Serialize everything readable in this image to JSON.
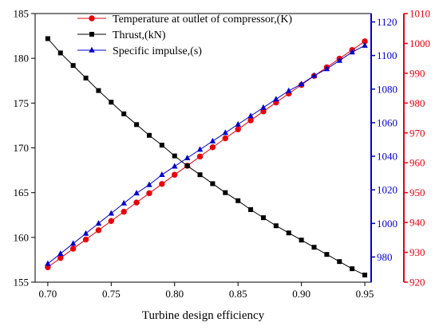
{
  "chart_data": {
    "type": "line",
    "title": "",
    "xlabel": "Turbine design efficiency",
    "xlim": [
      0.69,
      0.955
    ],
    "x_ticks": [
      "0.70",
      "0.75",
      "0.80",
      "0.85",
      "0.90",
      "0.95"
    ],
    "x_tick_values": [
      0.7,
      0.75,
      0.8,
      0.85,
      0.9,
      0.95
    ],
    "axes": [
      {
        "key": "left",
        "color": "#000000",
        "ylim": [
          155,
          185
        ],
        "ticks": [
          "155",
          "160",
          "165",
          "170",
          "175",
          "180",
          "185"
        ],
        "tick_values": [
          155,
          160,
          165,
          170,
          175,
          180,
          185
        ]
      },
      {
        "key": "right_inner",
        "color": "#0000cc",
        "ylim": [
          965,
          1125
        ],
        "ticks": [
          "980",
          "1000",
          "1020",
          "1040",
          "1060",
          "1080",
          "1100",
          "1120"
        ],
        "tick_values": [
          980,
          1000,
          1020,
          1040,
          1060,
          1080,
          1100,
          1120
        ]
      },
      {
        "key": "right_outer",
        "color": "#e8000b",
        "ylim": [
          920,
          1010
        ],
        "ticks": [
          "920",
          "930",
          "940",
          "950",
          "960",
          "970",
          "980",
          "990",
          "1000",
          "1010"
        ],
        "tick_values": [
          920,
          930,
          940,
          950,
          960,
          970,
          980,
          990,
          1000,
          1010
        ]
      }
    ],
    "x": [
      0.7,
      0.71,
      0.72,
      0.73,
      0.74,
      0.75,
      0.76,
      0.77,
      0.78,
      0.79,
      0.8,
      0.81,
      0.82,
      0.83,
      0.84,
      0.85,
      0.86,
      0.87,
      0.88,
      0.89,
      0.9,
      0.91,
      0.92,
      0.93,
      0.94,
      0.95
    ],
    "series": [
      {
        "name": "Temperature at outlet of compressor,(K)",
        "axis": "right_outer",
        "color": "#e8000b",
        "marker": "circle",
        "values": [
          925.0,
          928.1,
          931.2,
          934.3,
          937.4,
          940.5,
          943.6,
          946.7,
          949.8,
          952.9,
          956.0,
          959.0,
          962.1,
          965.2,
          968.2,
          971.2,
          974.2,
          977.2,
          980.2,
          983.2,
          986.1,
          989.1,
          992.0,
          994.9,
          997.8,
          1000.7
        ]
      },
      {
        "name": "Thrust,(kN)",
        "axis": "left",
        "color": "#000000",
        "marker": "square",
        "values": [
          182.2,
          180.6,
          179.2,
          177.8,
          176.4,
          175.1,
          173.8,
          172.6,
          171.4,
          170.3,
          169.1,
          168.0,
          167.0,
          166.0,
          165.0,
          164.1,
          163.1,
          162.2,
          161.3,
          160.5,
          159.7,
          158.9,
          158.1,
          157.3,
          156.5,
          155.8
        ]
      },
      {
        "name": "Specific impulse,(s)",
        "axis": "right_inner",
        "color": "#0000cc",
        "marker": "triangle",
        "values": [
          976,
          982,
          988,
          994,
          1000,
          1006,
          1012,
          1018,
          1023,
          1029,
          1034,
          1039,
          1044,
          1049,
          1054,
          1059,
          1064,
          1069,
          1074,
          1079,
          1083,
          1088,
          1092,
          1097,
          1102,
          1106
        ]
      }
    ],
    "legend_position": "top-center"
  }
}
